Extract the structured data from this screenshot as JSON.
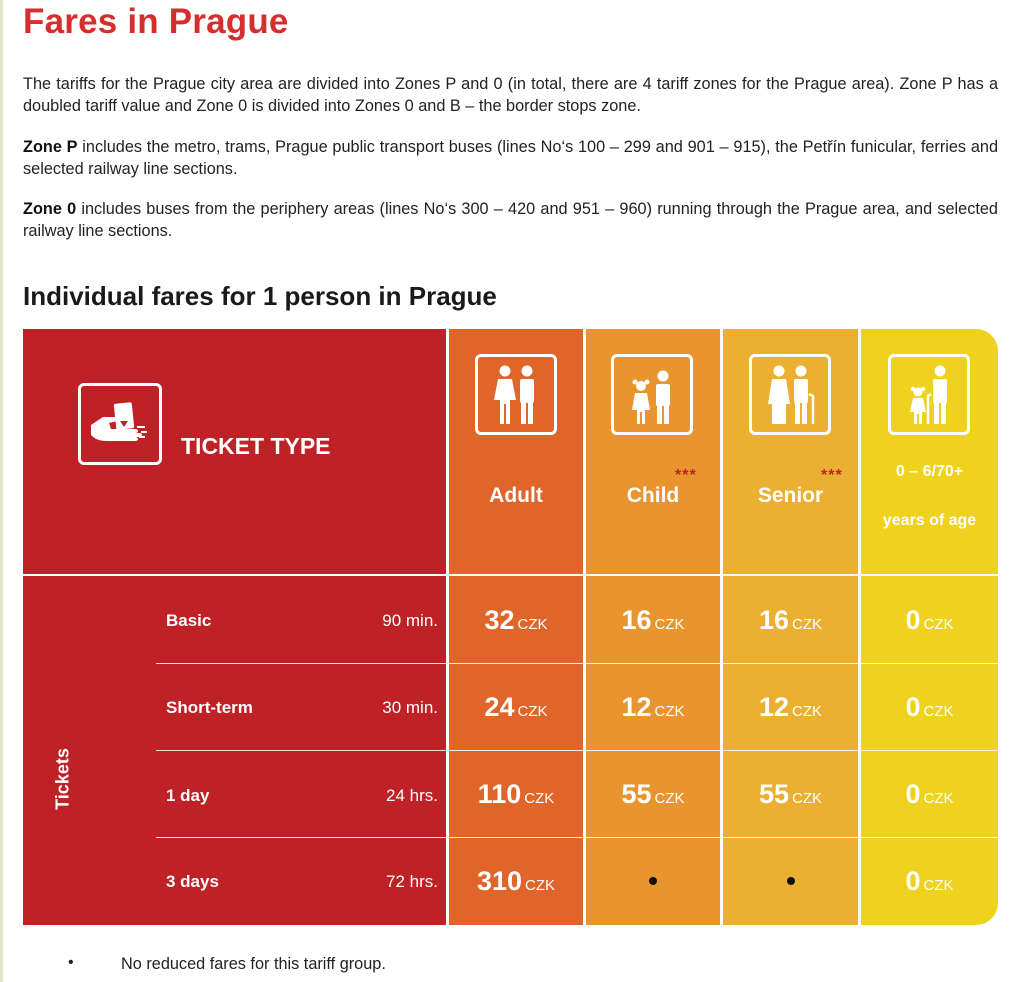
{
  "page": {
    "title": "Fares in Prague",
    "intro": "The tariffs for the Prague city area are divided into Zones P and 0 (in total, there are 4 tariff zones for the Prague area). Zone P has a doubled tariff value and Zone 0 is divided into Zones 0 and B – the border stops zone.",
    "zone_p": {
      "label": "Zone P",
      "text": " includes the metro, trams, Prague public transport buses (lines No‘s 100 – 299 and 901 – 915), the Petřín funicular, ferries and selected railway line sections."
    },
    "zone_0": {
      "label": "Zone 0",
      "text": " includes buses from the periphery areas (lines No‘s 300 – 420 and 951 – 960) running through the Prague area, and selected railway line sections."
    },
    "section_title": "Individual fares for 1 person in Prague"
  },
  "table": {
    "ticket_type_label": "TICKET TYPE",
    "group_label": "Tickets",
    "columns": {
      "adult": "Adult",
      "child": "Child",
      "senior": "Senior",
      "free_line1": "0 – 6/70+",
      "free_line2": "years of age",
      "stars": "***"
    },
    "currency": "CZK",
    "rows": [
      {
        "name": "Basic",
        "duration": "90 min.",
        "adult": "32",
        "child": "16",
        "senior": "16",
        "free": "0"
      },
      {
        "name": "Short-term",
        "duration": "30 min.",
        "adult": "24",
        "child": "12",
        "senior": "12",
        "free": "0"
      },
      {
        "name": "1 day",
        "duration": "24 hrs.",
        "adult": "110",
        "child": "55",
        "senior": "55",
        "free": "0"
      },
      {
        "name": "3 days",
        "duration": "72 hrs.",
        "adult": "310",
        "child": null,
        "senior": null,
        "free": "0"
      }
    ],
    "colors": {
      "red": "#be2126",
      "adult": "#e0652a",
      "child": "#e89530",
      "senior": "#ebb031",
      "free": "#eed21d"
    },
    "icons": [
      "ticket-hand-icon",
      "adult-couple-icon",
      "child-pair-icon",
      "senior-couple-icon",
      "child-senior-icon"
    ]
  },
  "footnote": {
    "bullet": "•",
    "text": "No reduced fares for this tariff group."
  }
}
